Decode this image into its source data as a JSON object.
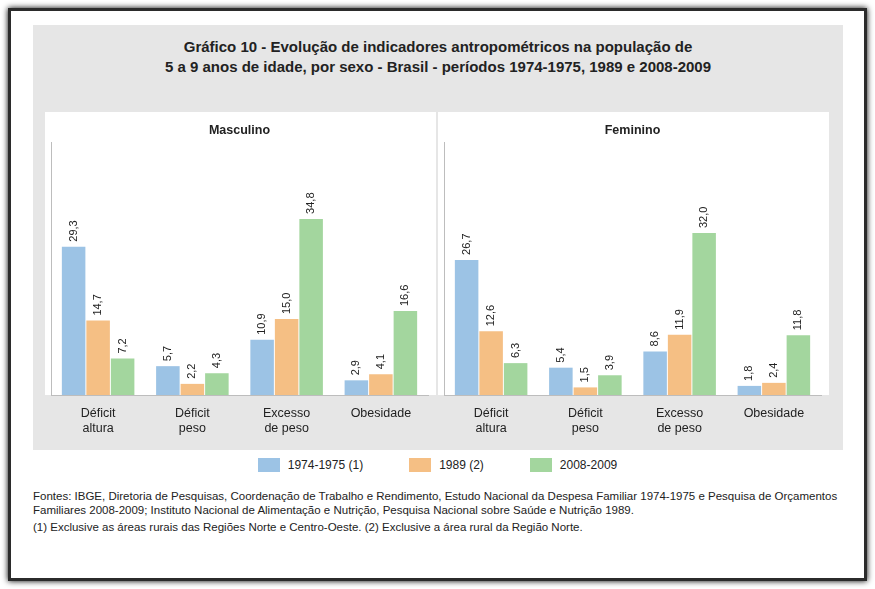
{
  "title": [
    "Gráfico 10 - Evolução de indicadores antropométricos na população de",
    "5 a 9 anos de idade, por sexo - Brasil - períodos 1974-1975, 1989 e 2008-2009"
  ],
  "footnotes": [
    "Fontes: IBGE, Diretoria de Pesquisas, Coordenação de Trabalho e Rendimento, Estudo Nacional da Despesa Familiar 1974-1975 e Pesquisa de Orçamentos Familiares 2008-2009; Instituto Nacional de Alimentação e Nutrição, Pesquisa Nacional sobre Saúde e Nutrição 1989.",
    "(1) Exclusive as áreas rurais das Regiões Norte e Centro-Oeste. (2) Exclusive a área rural da Região Norte."
  ],
  "chart_data": [
    {
      "type": "bar",
      "title": "Masculino",
      "categories": [
        [
          "Déficit",
          "altura"
        ],
        [
          "Déficit",
          "peso"
        ],
        [
          "Excesso",
          "de peso"
        ],
        [
          "Obesidade"
        ]
      ],
      "series": [
        {
          "name": "1974-1975 (1)",
          "color": "#9cc3e5",
          "values": [
            29.3,
            5.7,
            10.9,
            2.9
          ],
          "value_labels": [
            "29,3",
            "5,7",
            "10,9",
            "2,9"
          ]
        },
        {
          "name": "1989 (2)",
          "color": "#f5bf84",
          "values": [
            14.7,
            2.2,
            15.0,
            4.1
          ],
          "value_labels": [
            "14,7",
            "2,2",
            "15,0",
            "4,1"
          ]
        },
        {
          "name": "2008-2009",
          "color": "#a3d69e",
          "values": [
            7.2,
            4.3,
            34.8,
            16.6
          ],
          "value_labels": [
            "7,2",
            "4,3",
            "34,8",
            "16,6"
          ]
        }
      ],
      "ylim": [
        0,
        50
      ],
      "grid": false,
      "tick_labels": "x",
      "data_labels": true,
      "legend": "bottom"
    },
    {
      "type": "bar",
      "title": "Feminino",
      "categories": [
        [
          "Déficit",
          "altura"
        ],
        [
          "Déficit",
          "peso"
        ],
        [
          "Excesso",
          "de peso"
        ],
        [
          "Obesidade"
        ]
      ],
      "series": [
        {
          "name": "1974-1975 (1)",
          "color": "#9cc3e5",
          "values": [
            26.7,
            5.4,
            8.6,
            1.8
          ],
          "value_labels": [
            "26,7",
            "5,4",
            "8,6",
            "1,8"
          ]
        },
        {
          "name": "1989 (2)",
          "color": "#f5bf84",
          "values": [
            12.6,
            1.5,
            11.9,
            2.4
          ],
          "value_labels": [
            "12,6",
            "1,5",
            "11,9",
            "2,4"
          ]
        },
        {
          "name": "2008-2009",
          "color": "#a3d69e",
          "values": [
            6.3,
            3.9,
            32.0,
            11.8
          ],
          "value_labels": [
            "6,3",
            "3,9",
            "32,0",
            "11,8"
          ]
        }
      ],
      "ylim": [
        0,
        50
      ],
      "grid": false,
      "tick_labels": "x",
      "data_labels": true
    }
  ]
}
